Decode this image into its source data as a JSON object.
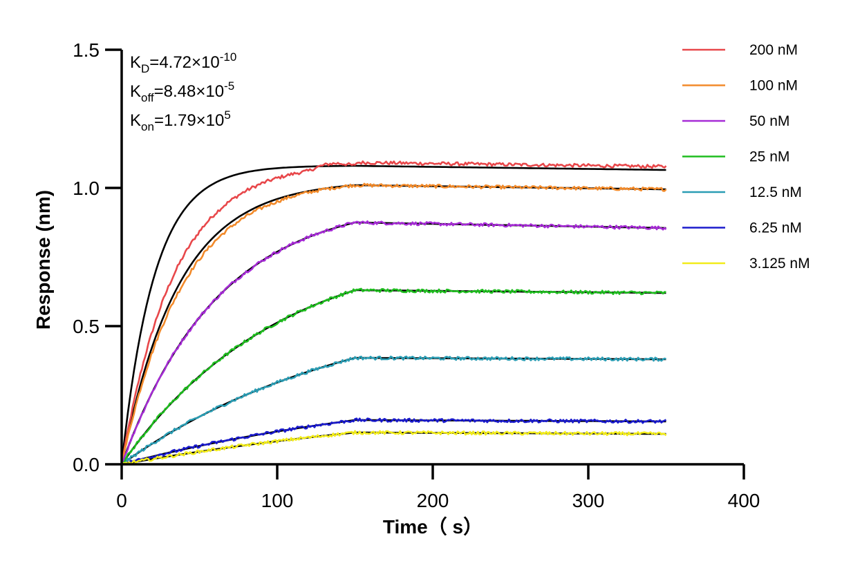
{
  "chart_data": {
    "type": "line",
    "title": "",
    "xlabel": "Time（ s）",
    "ylabel": "Response (nm)",
    "xlim": [
      0,
      400
    ],
    "ylim": [
      0,
      1.5
    ],
    "x_ticks": [
      "0",
      "100",
      "200",
      "300",
      "400"
    ],
    "y_ticks": [
      "0.0",
      "0.5",
      "1.0",
      "1.5"
    ],
    "grid": false,
    "legend_position": "right",
    "annotations": [
      {
        "main": "K",
        "sub": "D",
        "rest": "=4.72×10",
        "sup": "-10"
      },
      {
        "main": "K",
        "sub": "off",
        "rest": "=8.48×10",
        "sup": "-5"
      },
      {
        "main": "K",
        "sub": "on",
        "rest": "=1.79×10",
        "sup": "5"
      }
    ],
    "association_end_s": 150,
    "dissociation_end_s": 350,
    "fit_color": "#000000",
    "series": [
      {
        "name": "200 nM",
        "color": "#e8474a",
        "peak": 1.08,
        "end": 1.065
      },
      {
        "name": "100 nM",
        "color": "#f28a2a",
        "peak": 1.01,
        "end": 0.995
      },
      {
        "name": "50 nM",
        "color": "#a62bd6",
        "peak": 0.875,
        "end": 0.855
      },
      {
        "name": "25 nM",
        "color": "#1fbd1f",
        "peak": 0.63,
        "end": 0.62
      },
      {
        "name": "12.5 nM",
        "color": "#2a9db4",
        "peak": 0.385,
        "end": 0.38
      },
      {
        "name": "6.25 nM",
        "color": "#1a1acc",
        "peak": 0.16,
        "end": 0.155
      },
      {
        "name": "3.125 nM",
        "color": "#f2ec1a",
        "peak": 0.115,
        "end": 0.11
      }
    ]
  }
}
